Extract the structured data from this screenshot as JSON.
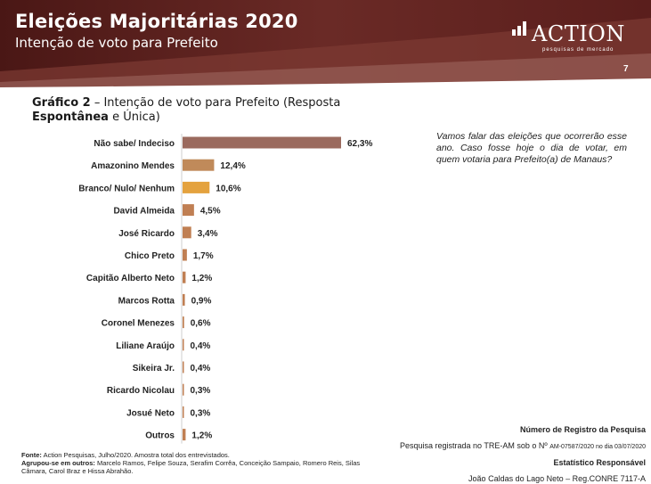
{
  "header": {
    "title": "Eleições Majoritárias 2020",
    "subtitle": "Intenção de voto para Prefeito",
    "logo_text": "ACTION",
    "logo_tagline": "pesquisas de mercado",
    "page_number": "7",
    "colors": {
      "dark": "#5a1e1c",
      "mid": "#7d3a33",
      "light": "#b08a82"
    }
  },
  "graph_title": {
    "label": "Gráfico 2",
    "text_a": " – Intenção de voto para Prefeito (Resposta ",
    "bold_b": "Espontânea",
    "text_c": " e Única)"
  },
  "question": "Vamos falar das eleições que ocorrerão esse ano. Caso fosse hoje o dia de votar, em quem votaria para Prefeito(a) de Manaus?",
  "chart_data": {
    "type": "bar",
    "orientation": "horizontal",
    "categories": [
      "Não sabe/ Indeciso",
      "Amazonino Mendes",
      "Branco/ Nulo/ Nenhum",
      "David Almeida",
      "José Ricardo",
      "Chico Preto",
      "Capitão Alberto Neto",
      "Marcos Rotta",
      "Coronel Menezes",
      "Liliane Araújo",
      "Sikeira Jr.",
      "Ricardo Nicolau",
      "Josué Neto",
      "Outros"
    ],
    "values": [
      62.3,
      12.4,
      10.6,
      4.5,
      3.4,
      1.7,
      1.2,
      0.9,
      0.6,
      0.4,
      0.4,
      0.3,
      0.3,
      1.2
    ],
    "labels": [
      "62,3%",
      "12,4%",
      "10,6%",
      "4,5%",
      "3,4%",
      "1,7%",
      "1,2%",
      "0,9%",
      "0,6%",
      "0,4%",
      "0,4%",
      "0,3%",
      "0,3%",
      "1,2%"
    ],
    "bar_colors": [
      "#9b6a5e",
      "#c08a5a",
      "#e4a23e",
      "#c07f53",
      "#c07f53",
      "#c07f53",
      "#c07f53",
      "#c07f53",
      "#c07f53",
      "#c07f53",
      "#c07f53",
      "#c07f53",
      "#c07f53",
      "#c07f53"
    ],
    "xlim": [
      0,
      62.3
    ],
    "grid": false,
    "legend": "none"
  },
  "footer": {
    "source_label": "Fonte:",
    "source_text": " Action Pesquisas, Julho/2020. Amostra total dos entrevistados.",
    "grouped_label": "Agrupou-se em outros:",
    "grouped_text": " Marcelo Ramos, Felipe Souza, Serafim Corrêa, Conceição Sampaio, Romero Reis, Silas Câmara, Carol Braz e Hissa Abrahão.",
    "registry_title": "Número de Registro da Pesquisa",
    "registry_prefix": "Pesquisa registrada no TRE-AM sob o Nº ",
    "registry_detail": "AM-07587/2020 no dia 03/07/2020",
    "statistician_title": "Estatístico Responsável",
    "statistician_name": "João Caldas do Lago Neto – Reg.CONRE 7117-A"
  }
}
